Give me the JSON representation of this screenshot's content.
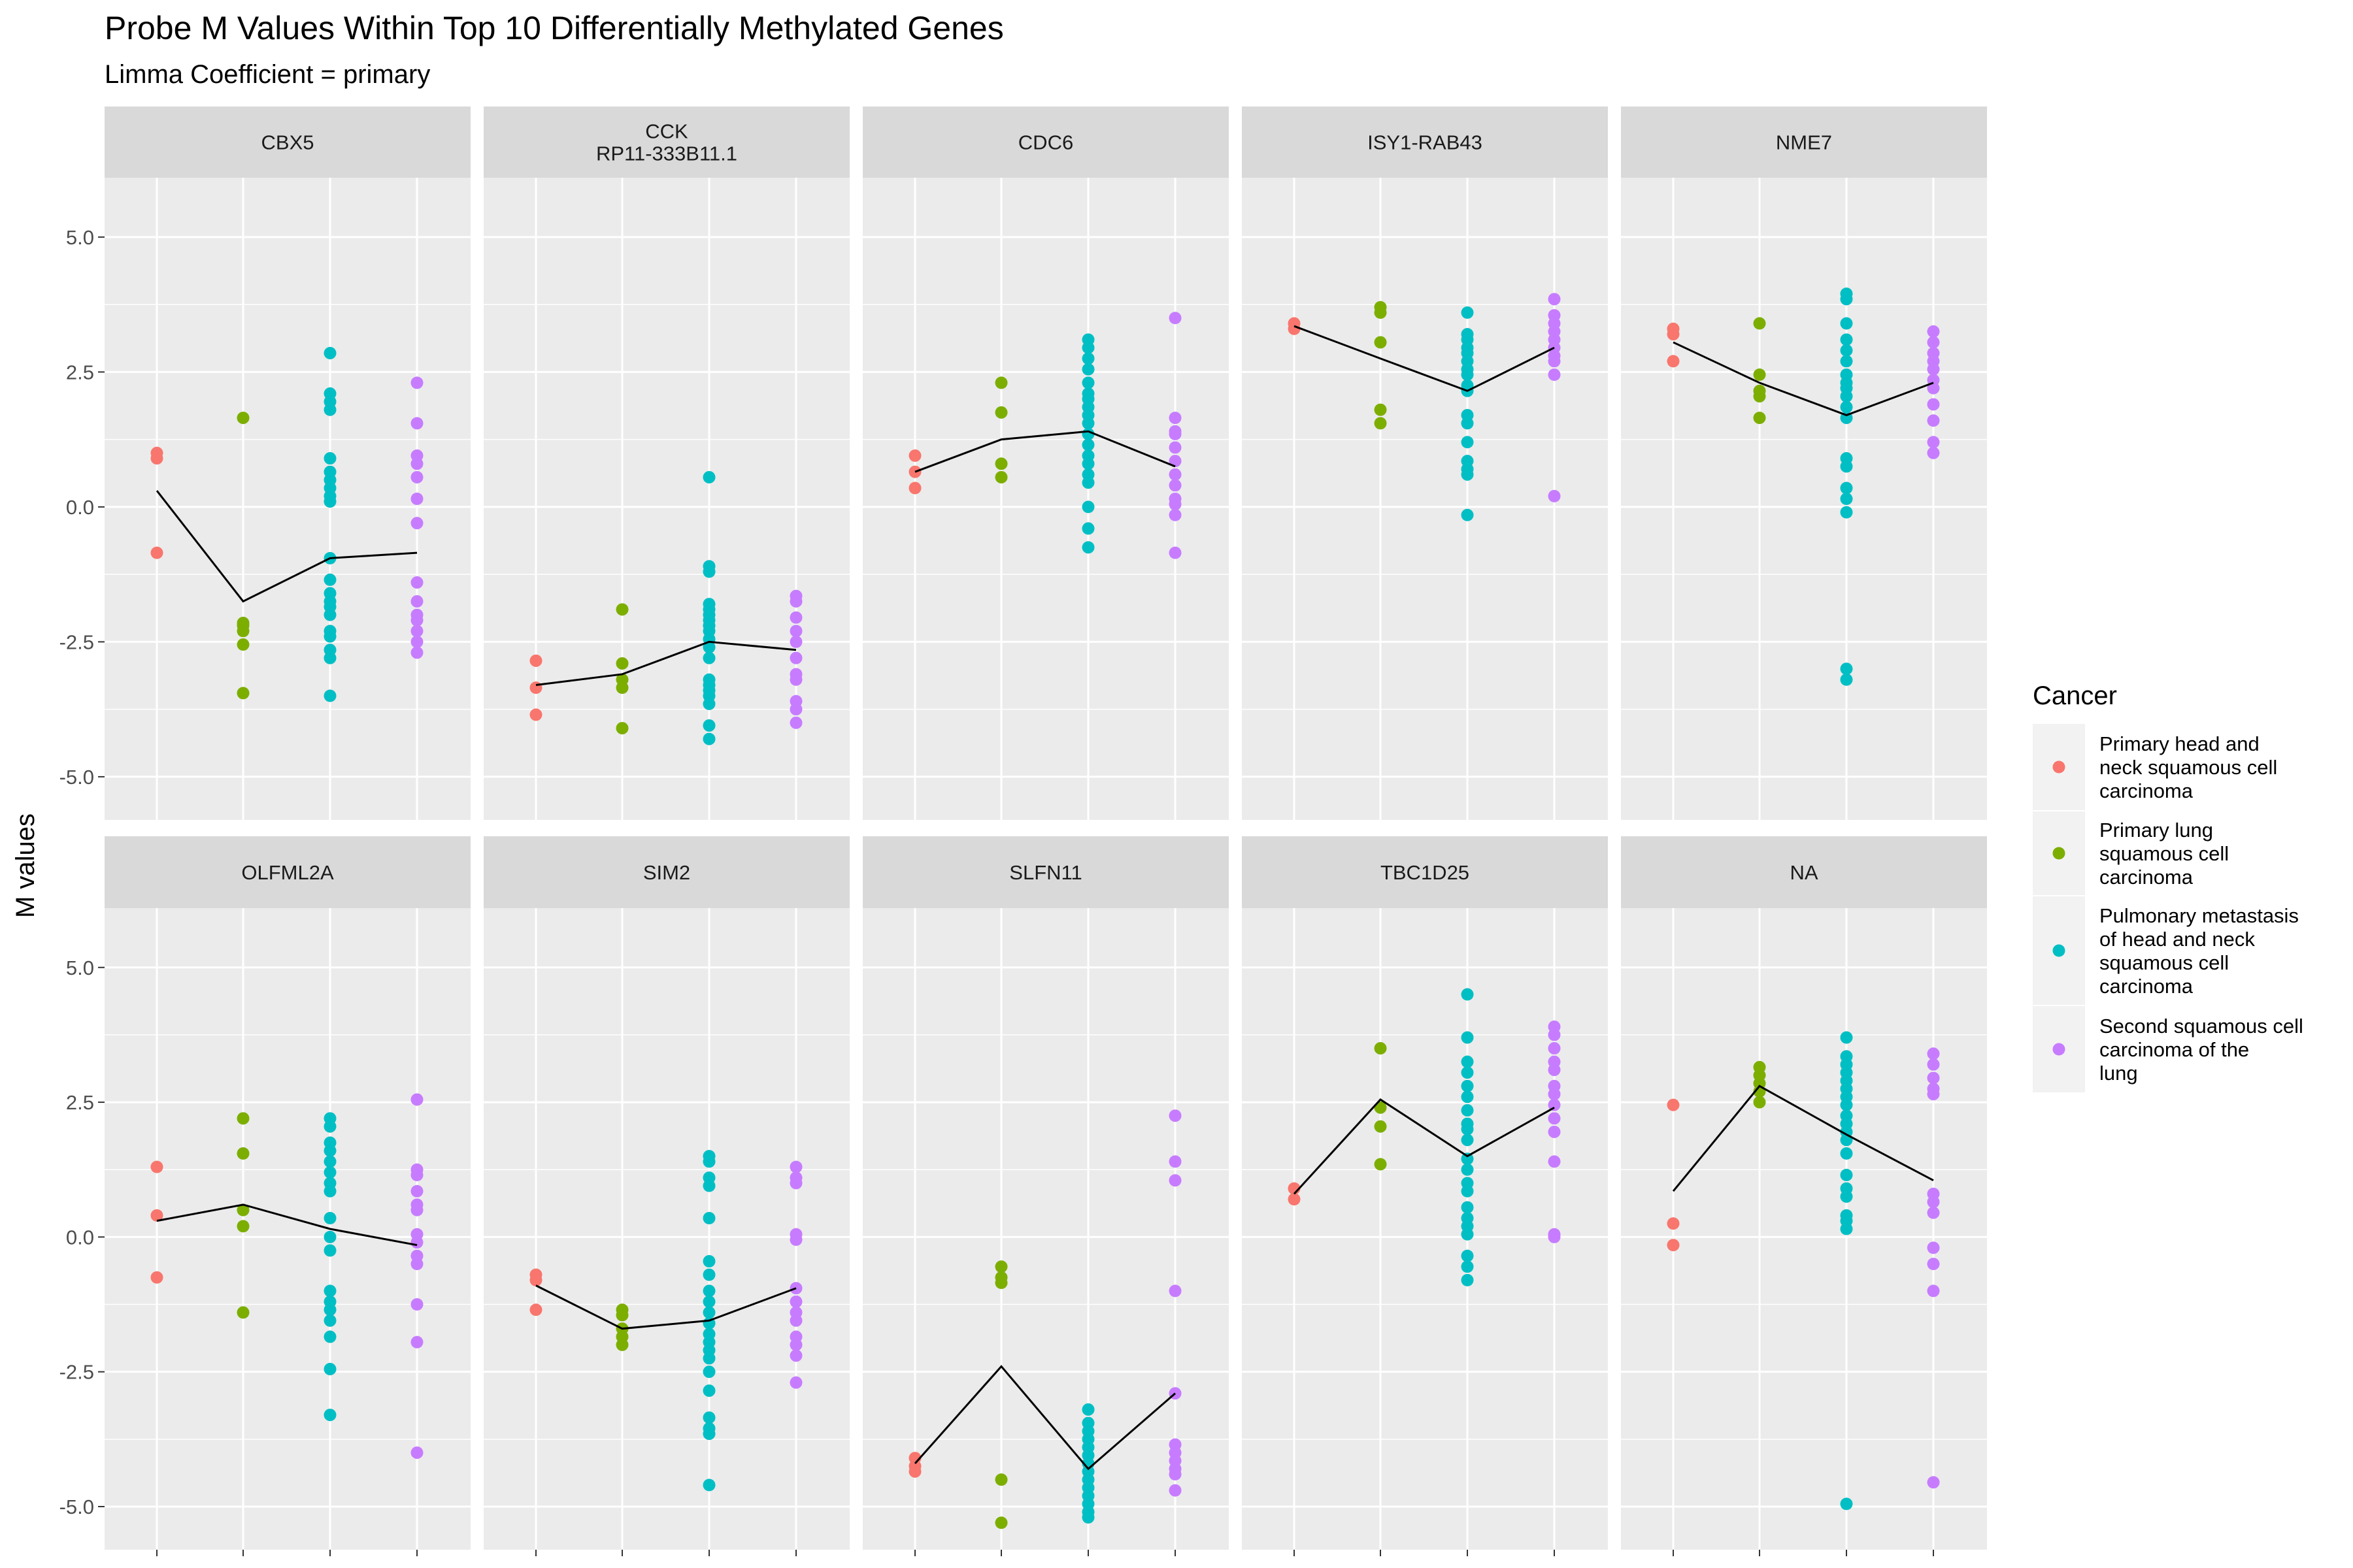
{
  "chart_data": {
    "type": "scatter",
    "title": "Probe M Values Within Top 10 Differentially Methylated Genes",
    "subtitle": "Limma Coefficient = primary",
    "xlabel": "",
    "ylabel": "M values",
    "ylim": [
      -5.8,
      6.1
    ],
    "y_ticks": [
      "-5.0",
      "-2.5",
      "0.0",
      "2.5",
      "5.0"
    ],
    "y_tick_values": [
      -5,
      -2.5,
      0,
      2.5,
      5
    ],
    "layout": "facets 5 columns x 2 rows",
    "grid": true,
    "legend": {
      "title": "Cancer",
      "placement": "right",
      "entries": [
        {
          "label_lines": [
            "Primary head and",
            "neck squamous cell",
            "carcinoma"
          ],
          "color": "#F8766D"
        },
        {
          "label_lines": [
            "Primary lung",
            "squamous cell",
            "carcinoma"
          ],
          "color": "#7CAE00"
        },
        {
          "label_lines": [
            "Pulmonary metastasis",
            "of head and neck",
            "squamous cell",
            "carcinoma"
          ],
          "color": "#00BFC4"
        },
        {
          "label_lines": [
            "Second squamous cell",
            "carcinoma of the",
            "lung"
          ],
          "color": "#C77CFF"
        }
      ]
    },
    "panels": [
      {
        "label_lines": [
          "CBX5"
        ],
        "means": [
          0.3,
          -1.75,
          -0.95,
          -0.85
        ],
        "groups": [
          [
            1.0,
            0.9,
            -0.85
          ],
          [
            1.65,
            -2.15,
            -2.2,
            -2.3,
            -2.55,
            -3.45
          ],
          [
            2.85,
            2.1,
            1.95,
            1.8,
            0.9,
            0.65,
            0.5,
            0.35,
            0.2,
            0.1,
            -0.95,
            -1.35,
            -1.6,
            -1.75,
            -1.85,
            -2.0,
            -2.3,
            -2.4,
            -2.65,
            -2.8,
            -3.5
          ],
          [
            2.3,
            1.55,
            0.95,
            0.8,
            0.55,
            0.15,
            -0.3,
            -1.4,
            -1.75,
            -2.0,
            -2.1,
            -2.3,
            -2.5,
            -2.7
          ]
        ]
      },
      {
        "label_lines": [
          "CCK",
          "RP11-333B11.1"
        ],
        "means": [
          -3.3,
          -3.1,
          -2.5,
          -2.65
        ],
        "groups": [
          [
            -2.85,
            -3.35,
            -3.85
          ],
          [
            -1.9,
            -2.9,
            -3.2,
            -3.35,
            -4.1
          ],
          [
            0.55,
            -1.1,
            -1.2,
            -1.8,
            -1.9,
            -2.0,
            -2.1,
            -2.2,
            -2.3,
            -2.45,
            -2.6,
            -2.8,
            -3.2,
            -3.3,
            -3.4,
            -3.5,
            -3.65,
            -4.05,
            -4.3
          ],
          [
            -1.65,
            -1.75,
            -2.05,
            -2.3,
            -2.5,
            -2.8,
            -3.1,
            -3.2,
            -3.6,
            -3.75,
            -4.0
          ]
        ]
      },
      {
        "label_lines": [
          "CDC6"
        ],
        "means": [
          0.65,
          1.25,
          1.4,
          0.75
        ],
        "groups": [
          [
            0.95,
            0.65,
            0.35
          ],
          [
            2.3,
            1.75,
            0.8,
            0.55
          ],
          [
            3.1,
            2.95,
            2.75,
            2.55,
            2.3,
            2.1,
            2.0,
            1.85,
            1.7,
            1.55,
            1.35,
            1.15,
            0.95,
            0.8,
            0.6,
            0.45,
            0.0,
            -0.4,
            -0.75
          ],
          [
            3.5,
            1.65,
            1.4,
            1.35,
            1.1,
            0.85,
            0.6,
            0.4,
            0.15,
            0.05,
            -0.15,
            -0.85
          ]
        ]
      },
      {
        "label_lines": [
          "ISY1-RAB43"
        ],
        "means": [
          3.35,
          2.75,
          2.15,
          2.95
        ],
        "groups": [
          [
            3.4,
            3.3
          ],
          [
            3.7,
            3.6,
            3.05,
            1.8,
            1.55
          ],
          [
            3.6,
            3.2,
            3.1,
            2.95,
            2.85,
            2.7,
            2.55,
            2.45,
            2.25,
            2.15,
            1.7,
            1.55,
            1.2,
            0.85,
            0.7,
            0.6,
            -0.15
          ],
          [
            3.85,
            3.55,
            3.4,
            3.25,
            3.1,
            2.95,
            2.8,
            2.7,
            2.45,
            0.2
          ]
        ]
      },
      {
        "label_lines": [
          "NME7"
        ],
        "means": [
          3.05,
          2.3,
          1.7,
          2.3
        ],
        "groups": [
          [
            3.3,
            3.2,
            2.7
          ],
          [
            3.4,
            2.45,
            2.15,
            2.05,
            1.65
          ],
          [
            3.95,
            3.85,
            3.4,
            3.1,
            2.9,
            2.7,
            2.45,
            2.3,
            2.2,
            2.05,
            1.85,
            1.65,
            0.9,
            0.75,
            0.35,
            0.15,
            -0.1,
            -3.0,
            -3.2
          ],
          [
            3.25,
            3.05,
            2.85,
            2.7,
            2.55,
            2.35,
            2.2,
            1.9,
            1.6,
            1.2,
            1.0
          ]
        ]
      },
      {
        "label_lines": [
          "OLFML2A"
        ],
        "means": [
          0.3,
          0.6,
          0.15,
          -0.15
        ],
        "groups": [
          [
            1.3,
            0.4,
            -0.75
          ],
          [
            2.2,
            1.55,
            0.5,
            0.2,
            -1.4
          ],
          [
            2.2,
            2.05,
            1.75,
            1.6,
            1.4,
            1.2,
            1.0,
            0.85,
            0.35,
            0.0,
            -0.25,
            -1.0,
            -1.2,
            -1.35,
            -1.55,
            -1.85,
            -2.45,
            -3.3
          ],
          [
            2.55,
            1.25,
            1.15,
            0.85,
            0.6,
            0.5,
            0.05,
            -0.1,
            -0.35,
            -0.5,
            -1.25,
            -1.95,
            -4.0
          ]
        ]
      },
      {
        "label_lines": [
          "SIM2"
        ],
        "means": [
          -0.9,
          -1.7,
          -1.55,
          -0.95
        ],
        "groups": [
          [
            -0.7,
            -0.8,
            -1.35
          ],
          [
            -1.35,
            -1.45,
            -1.7,
            -1.85,
            -2.0
          ],
          [
            1.5,
            1.4,
            1.1,
            0.95,
            0.35,
            -0.45,
            -0.7,
            -1.0,
            -1.2,
            -1.4,
            -1.6,
            -1.8,
            -1.95,
            -2.1,
            -2.25,
            -2.5,
            -2.85,
            -3.35,
            -3.55,
            -3.65,
            -4.6
          ],
          [
            1.3,
            1.1,
            1.0,
            0.05,
            -0.05,
            -0.95,
            -1.2,
            -1.4,
            -1.55,
            -1.85,
            -2.0,
            -2.2,
            -2.7
          ]
        ]
      },
      {
        "label_lines": [
          "SLFN11"
        ],
        "means": [
          -4.2,
          -2.4,
          -4.3,
          -2.9
        ],
        "groups": [
          [
            -4.1,
            -4.25,
            -4.35
          ],
          [
            -0.55,
            -0.75,
            -0.85,
            -4.5,
            -5.3
          ],
          [
            -3.2,
            -3.45,
            -3.6,
            -3.75,
            -3.9,
            -4.05,
            -4.2,
            -4.35,
            -4.5,
            -4.65,
            -4.8,
            -4.95,
            -5.1,
            -5.2
          ],
          [
            2.25,
            1.4,
            1.05,
            -1.0,
            -2.9,
            -3.85,
            -4.0,
            -4.15,
            -4.3,
            -4.4,
            -4.7
          ]
        ]
      },
      {
        "label_lines": [
          "TBC1D25"
        ],
        "means": [
          0.8,
          2.55,
          1.5,
          2.4
        ],
        "groups": [
          [
            0.9,
            0.7
          ],
          [
            3.5,
            2.4,
            2.05,
            1.35
          ],
          [
            4.5,
            3.7,
            3.25,
            3.05,
            2.8,
            2.6,
            2.35,
            2.1,
            2.0,
            1.8,
            1.45,
            1.25,
            1.0,
            0.85,
            0.55,
            0.35,
            0.2,
            0.05,
            -0.35,
            -0.55,
            -0.8
          ],
          [
            3.9,
            3.75,
            3.5,
            3.25,
            3.1,
            2.8,
            2.65,
            2.45,
            2.2,
            1.95,
            1.4,
            0.05,
            0.0
          ]
        ]
      },
      {
        "label_lines": [
          "NA"
        ],
        "means": [
          0.85,
          2.8,
          1.9,
          1.05
        ],
        "groups": [
          [
            2.45,
            0.25,
            -0.15
          ],
          [
            3.15,
            3.0,
            2.85,
            2.7,
            2.5
          ],
          [
            3.7,
            3.35,
            3.2,
            3.05,
            2.9,
            2.75,
            2.6,
            2.45,
            2.25,
            2.1,
            1.95,
            1.8,
            1.55,
            1.15,
            0.9,
            0.75,
            0.4,
            0.3,
            0.15,
            -4.95
          ],
          [
            3.4,
            3.2,
            2.95,
            2.75,
            2.65,
            0.8,
            0.65,
            0.45,
            -0.2,
            -0.5,
            -1.0,
            -4.55
          ]
        ]
      }
    ]
  }
}
